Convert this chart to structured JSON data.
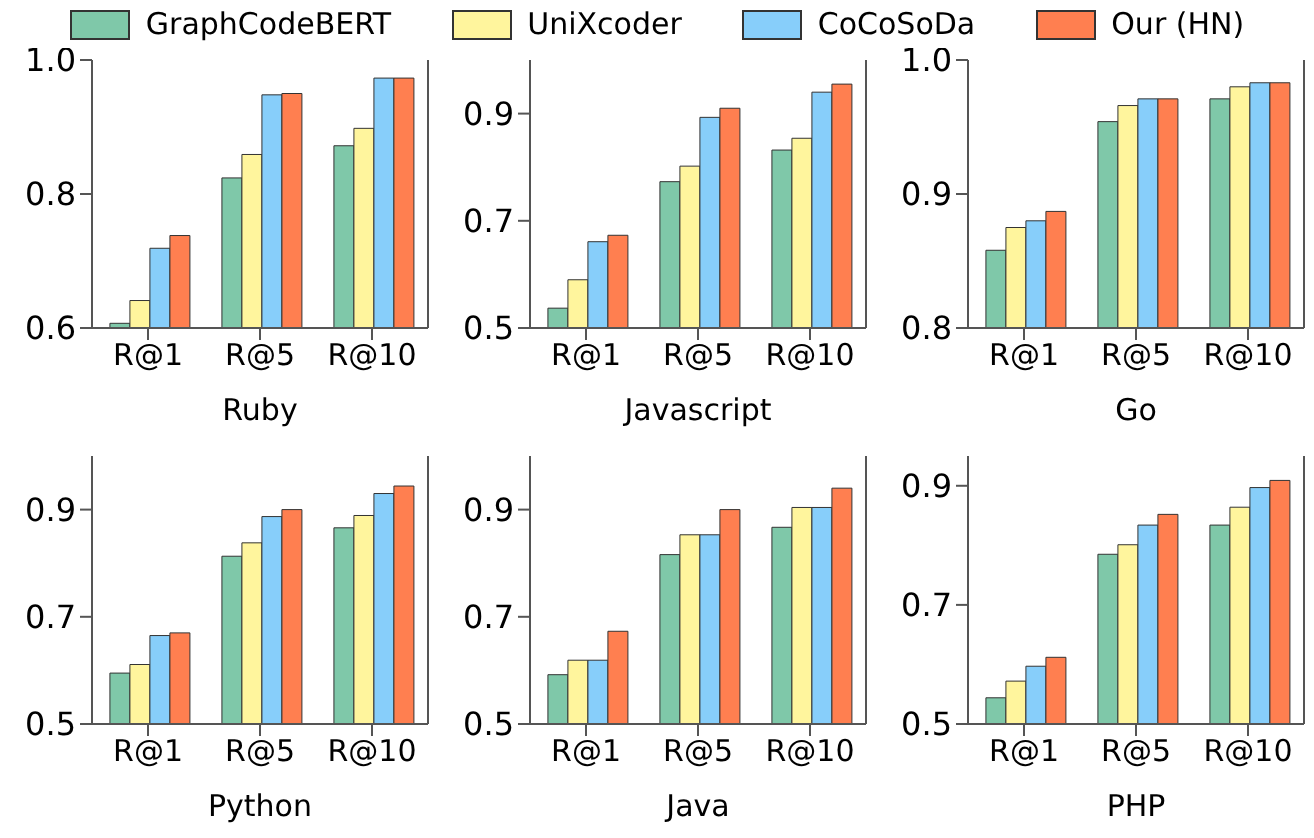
{
  "chart_data": [
    {
      "type": "bar",
      "xlabel": "Ruby",
      "categories": [
        "R@1",
        "R@5",
        "R@10"
      ],
      "ylim": [
        0.6,
        1.0
      ],
      "yticks": [
        0.6,
        0.8,
        {
          "value": 1,
          "label": "1.0"
        }
      ],
      "legend": "top",
      "series": [
        {
          "name": "GraphCodeBERT",
          "color": "#7fc8a9",
          "values": [
            0.607,
            0.824,
            0.872
          ]
        },
        {
          "name": "UniXcoder",
          "color": "#fff59d",
          "values": [
            0.641,
            0.859,
            0.898
          ]
        },
        {
          "name": "CoCoSoDa",
          "color": "#87cefa",
          "values": [
            0.719,
            0.948,
            0.973
          ]
        },
        {
          "name": "Our (HN)",
          "color": "#ff7f50",
          "values": [
            0.738,
            0.95,
            0.973
          ]
        }
      ]
    },
    {
      "type": "bar",
      "xlabel": "Javascript",
      "categories": [
        "R@1",
        "R@5",
        "R@10"
      ],
      "ylim": [
        0.5,
        1.0
      ],
      "yticks": [
        0.5,
        0.7,
        0.9
      ],
      "series": [
        {
          "color": "#7fc8a9",
          "values": [
            0.537,
            0.773,
            0.832
          ]
        },
        {
          "color": "#fff59d",
          "values": [
            0.59,
            0.802,
            0.854
          ]
        },
        {
          "color": "#87cefa",
          "values": [
            0.661,
            0.893,
            0.94
          ]
        },
        {
          "color": "#ff7f50",
          "values": [
            0.673,
            0.91,
            0.955
          ]
        }
      ]
    },
    {
      "type": "bar",
      "xlabel": "Go",
      "categories": [
        "R@1",
        "R@5",
        "R@10"
      ],
      "ylim": [
        0.8,
        1.0
      ],
      "yticks": [
        0.8,
        0.9,
        {
          "value": 1,
          "label": "1.0"
        }
      ],
      "series": [
        {
          "color": "#7fc8a9",
          "values": [
            0.858,
            0.954,
            0.971
          ]
        },
        {
          "color": "#fff59d",
          "values": [
            0.875,
            0.966,
            0.98
          ]
        },
        {
          "color": "#87cefa",
          "values": [
            0.88,
            0.971,
            0.983
          ]
        },
        {
          "color": "#ff7f50",
          "values": [
            0.887,
            0.971,
            0.983
          ]
        }
      ]
    },
    {
      "type": "bar",
      "xlabel": "Python",
      "categories": [
        "R@1",
        "R@5",
        "R@10"
      ],
      "ylim": [
        0.5,
        1.0
      ],
      "yticks": [
        0.5,
        0.7,
        0.9
      ],
      "series": [
        {
          "color": "#7fc8a9",
          "values": [
            0.595,
            0.813,
            0.866
          ]
        },
        {
          "color": "#fff59d",
          "values": [
            0.611,
            0.838,
            0.889
          ]
        },
        {
          "color": "#87cefa",
          "values": [
            0.665,
            0.887,
            0.93
          ]
        },
        {
          "color": "#ff7f50",
          "values": [
            0.67,
            0.9,
            0.944
          ]
        }
      ]
    },
    {
      "type": "bar",
      "xlabel": "Java",
      "categories": [
        "R@1",
        "R@5",
        "R@10"
      ],
      "ylim": [
        0.5,
        1.0
      ],
      "yticks": [
        0.5,
        0.7,
        0.9
      ],
      "series": [
        {
          "color": "#7fc8a9",
          "values": [
            0.592,
            0.816,
            0.867
          ]
        },
        {
          "color": "#fff59d",
          "values": [
            0.619,
            0.853,
            0.904
          ]
        },
        {
          "color": "#87cefa",
          "values": [
            0.619,
            0.853,
            0.904
          ]
        },
        {
          "color": "#ff7f50",
          "values": [
            0.673,
            0.9,
            0.94
          ]
        }
      ]
    },
    {
      "type": "bar",
      "xlabel": "PHP",
      "categories": [
        "R@1",
        "R@5",
        "R@10"
      ],
      "ylim": [
        0.5,
        0.95
      ],
      "yticks": [
        0.5,
        0.7,
        0.9
      ],
      "series": [
        {
          "color": "#7fc8a9",
          "values": [
            0.544,
            0.785,
            0.834
          ]
        },
        {
          "color": "#fff59d",
          "values": [
            0.572,
            0.801,
            0.864
          ]
        },
        {
          "color": "#87cefa",
          "values": [
            0.597,
            0.834,
            0.897
          ]
        },
        {
          "color": "#ff7f50",
          "values": [
            0.612,
            0.852,
            0.909
          ]
        }
      ]
    }
  ]
}
